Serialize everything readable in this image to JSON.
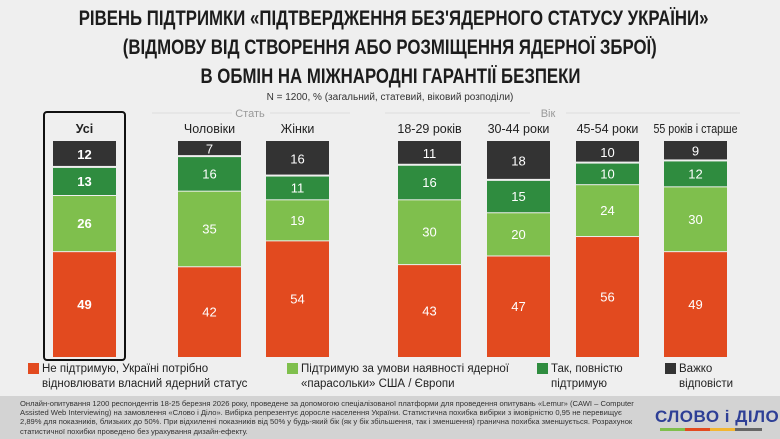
{
  "title": {
    "line1": "РІВЕНЬ ПІДТРИМКИ «ПІДТВЕРДЖЕННЯ БЕЗ'ЯДЕРНОГО СТАТУСУ УКРАЇНИ»",
    "line2": "(ВІДМОВУ ВІД СТВОРЕННЯ АБО РОЗМІЩЕННЯ ЯДЕРНОЇ ЗБРОЇ)",
    "line3": "В ОБМІН НА МІЖНАРОДНІ ГАРАНТІЇ БЕЗПЕКИ"
  },
  "subtitle": "N = 1200, % (загальний, статевий, віковий розподіли)",
  "chart_data": {
    "type": "bar",
    "stacked": true,
    "group_labels": [
      "Стать",
      "Вік"
    ],
    "categories": [
      "Усі",
      "Чоловіки",
      "Жінки",
      "18-29 років",
      "30-44 роки",
      "45-54 роки",
      "55 років і старше"
    ],
    "highlighted_category": "Усі",
    "series": [
      {
        "name": "Не підтримую, Україні потрібно відновлювати власний ядерний статус",
        "color": "#e24a1f",
        "values": [
          49,
          42,
          54,
          43,
          47,
          56,
          49
        ]
      },
      {
        "name": "Підтримую за умови наявності ядерної «парасольки» США / Європи",
        "color": "#7fbf4d",
        "values": [
          26,
          35,
          19,
          30,
          20,
          24,
          30
        ]
      },
      {
        "name": "Так, повністю підтримую",
        "color": "#2f8c3f",
        "values": [
          13,
          16,
          11,
          16,
          15,
          10,
          12
        ]
      },
      {
        "name": "Важко відповісти",
        "color": "#333333",
        "values": [
          12,
          7,
          16,
          11,
          18,
          10,
          9
        ]
      }
    ],
    "ylim": [
      0,
      100
    ]
  },
  "legend": [
    {
      "line1": "Не підтримую, Україні потрібно",
      "line2": "відновлювати власний ядерний статус",
      "color": "#e24a1f"
    },
    {
      "line1": "Підтримую за умови наявності ядерної",
      "line2": "«парасольки» США / Європи",
      "color": "#7fbf4d"
    },
    {
      "line1": "Так, повністю",
      "line2": "підтримую",
      "color": "#2f8c3f"
    },
    {
      "line1": "Важко",
      "line2": "відповісти",
      "color": "#333333"
    }
  ],
  "footer": {
    "note": "Онлайн-опитування 1200 респондентів 18-25 березня 2026 року, проведене за допомогою спеціалізованої платформи для проведення опитувань «Lemur» (CAWI – Computer Assisted Web Interviewing) на замовлення «Слово і Діло». Вибірка репрезентує доросле населення України. Статистична похибка вибірки з імовірністю 0,95 не перевищує 2,89% для показників, близьких до 50%. При відхиленні показників від 50% у будь-який бік (як у бік збільшення, так і зменшення) гранична похибка зменшується. Розрахунок статистичної похибки проведено без урахування дизайн-ефекту.",
    "logo": "СЛОВО і ДІЛО"
  }
}
